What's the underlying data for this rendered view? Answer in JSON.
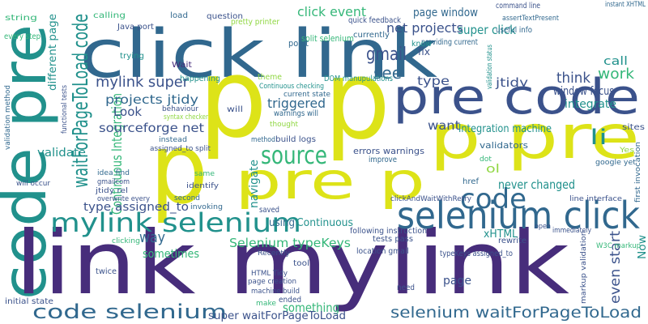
{
  "words": [
    "click link",
    "p",
    "p",
    "p",
    "p pre",
    "pre p",
    "pre code",
    "code pre",
    "link mylink",
    "selenium click",
    "mylink selenium",
    "code selenium",
    "selenium waitForPageToLoad",
    "waitForPageToLoad code",
    "source",
    "code",
    "gmail",
    "li",
    "Selenium typeKeys",
    "Continuous Integration",
    "mylink super",
    "projects jtidy",
    "Look",
    "sourceforge net",
    "validate",
    "type assigned_to",
    "way",
    "sometimes",
    "triggered",
    "see",
    "type",
    "jtidy",
    "want",
    "Integration machine",
    "think",
    "work",
    "window focus",
    "integrate",
    "call",
    "net projects",
    "super click",
    "page window",
    "click event",
    "never changed",
    "Continuous",
    "using",
    "something",
    "page",
    "even start",
    "Now",
    "xHTML",
    "navigate",
    "validators",
    "errors warnings",
    "string",
    "different page",
    "every step",
    "Java port",
    "calling",
    "load",
    "question",
    "pretty printer",
    "split selenium",
    "providing current",
    "command line",
    "assertTextPresent",
    "quick feedback",
    "instant XHTML",
    "useful info",
    "fix",
    "know",
    "currently",
    "point",
    "trying",
    "Wait",
    "happening",
    "theme",
    "Continuous checking",
    "DOM manupulations",
    "behaviour",
    "syntax checker",
    "will",
    "warnings will",
    "thought",
    "instead",
    "method",
    "build logs",
    "idea find",
    "gmailcom",
    "jtidy rel",
    "overwrite every",
    "second",
    "invoking",
    "identify",
    "same",
    "assigned_to split",
    "improve",
    "clickAndWaitWithRetry",
    "href",
    "dot",
    "ol",
    "google yet",
    "Yes",
    "sites",
    "line interface",
    "tool",
    "Recently",
    "tests pass",
    "following instruction",
    "rewrite",
    "location gmail",
    "typeKeys assigned_to",
    "W3C markup",
    "HTML Tidy",
    "page creation",
    "machine build",
    "need",
    "make",
    "ended",
    "super waitForPageToLoad",
    "initial state",
    "twice",
    "clicking",
    "saved",
    "immediately",
    "open",
    "functional tests",
    "validation method",
    "validation status",
    "markup validation",
    "first invocation",
    "will occur",
    "current state"
  ]
}
